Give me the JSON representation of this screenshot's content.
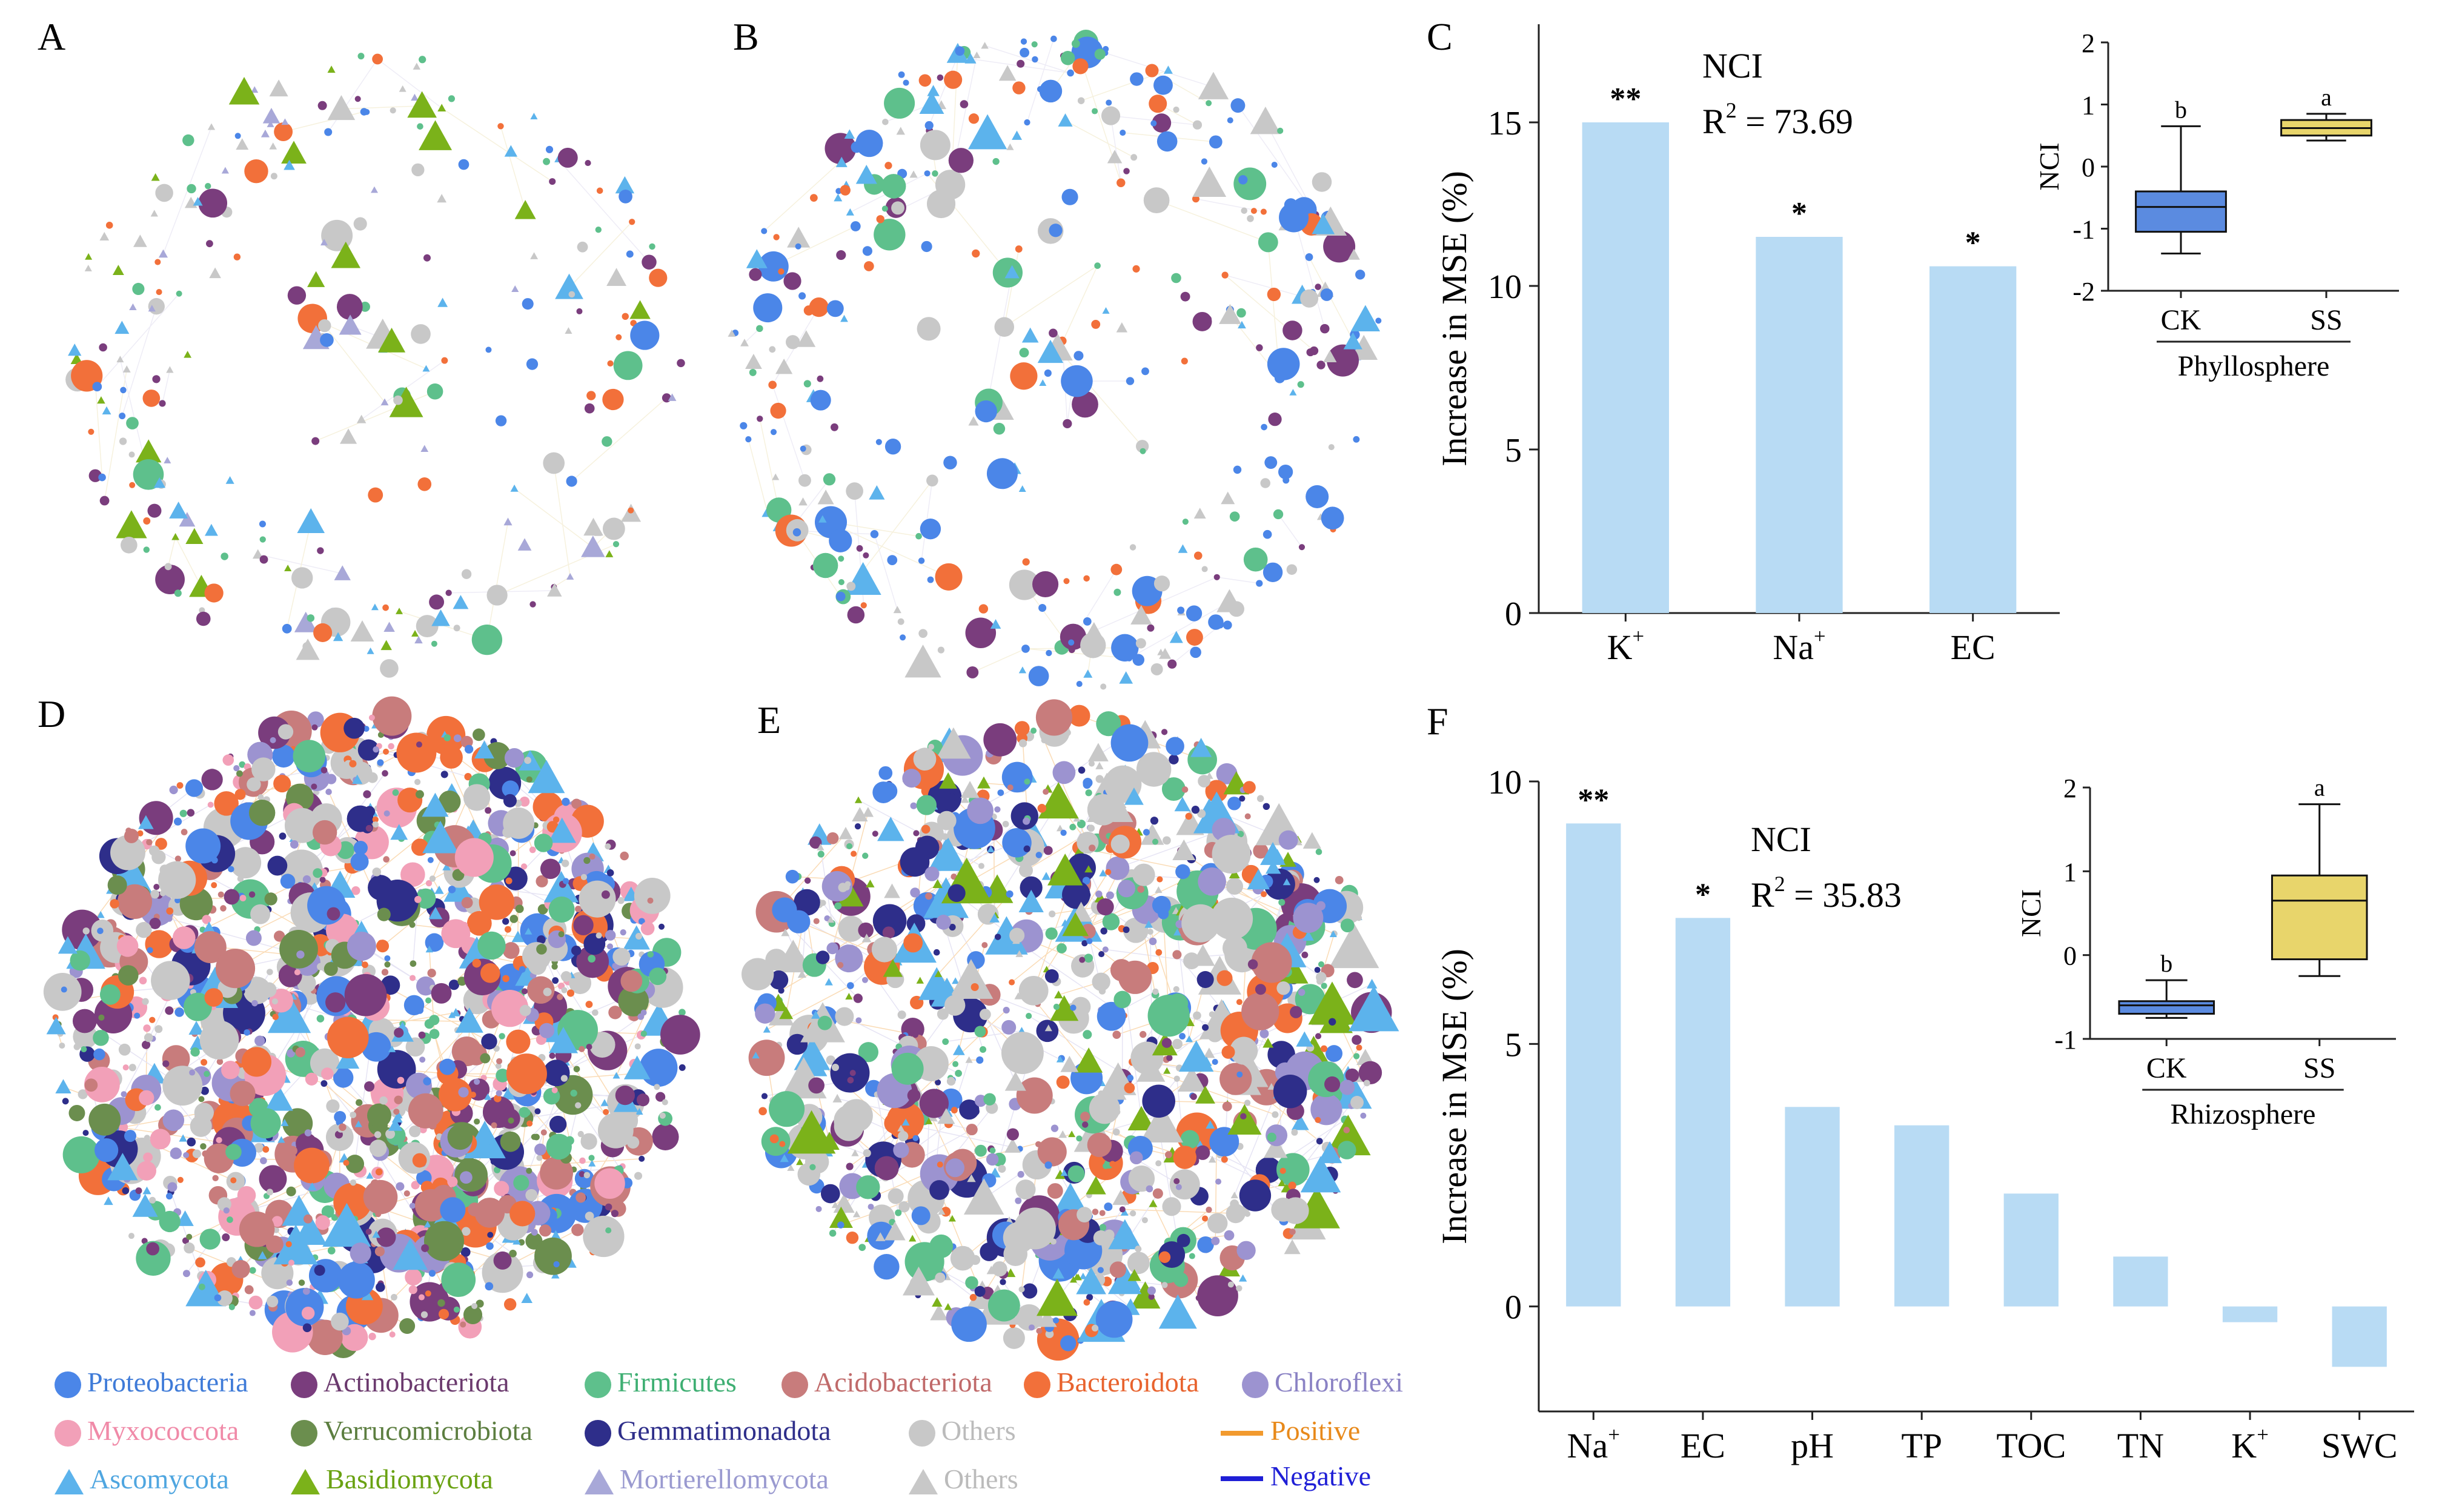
{
  "panels": {
    "A": "A",
    "B": "B",
    "C": "C",
    "D": "D",
    "E": "E",
    "F": "F"
  },
  "colors": {
    "bar": "#B8DBF4",
    "ck_box": "#5B8BE0",
    "ss_box": "#E8D56B",
    "positive": "#F29A2E",
    "negative": "#1F1FD6",
    "Proteobacteria": "#4B86E8",
    "Actinobacteriota": "#7A3D7D",
    "Firmicutes": "#5EC08C",
    "Acidobacteriota": "#C87C7C",
    "Bacteroidota": "#F2703A",
    "Chloroflexi": "#9C93D0",
    "Myxococcota": "#F2A0B8",
    "Verrucomicrobiota": "#6B8E4E",
    "Gemmatimonadota": "#2E2E8A",
    "OthersBact": "#C8C8C8",
    "Ascomycota": "#5CB3EC",
    "Basidiomycota": "#7BB21A",
    "Mortierellomycota": "#A8A8D8",
    "OthersFungi": "#C8C8C8"
  },
  "legend": {
    "items": [
      {
        "label": "Proteobacteria",
        "shape": "circle",
        "color": "#4B86E8",
        "text_color": "#3F7BD8"
      },
      {
        "label": "Actinobacteriota",
        "shape": "circle",
        "color": "#7A3D7D",
        "text_color": "#6B3A6E"
      },
      {
        "label": "Firmicutes",
        "shape": "circle",
        "color": "#5EC08C",
        "text_color": "#3FAF73"
      },
      {
        "label": "Acidobacteriota",
        "shape": "circle",
        "color": "#C87C7C",
        "text_color": "#C06A6A"
      },
      {
        "label": "Bacteroidota",
        "shape": "circle",
        "color": "#F2703A",
        "text_color": "#E8632E"
      },
      {
        "label": "Chloroflexi",
        "shape": "circle",
        "color": "#9C93D0",
        "text_color": "#8A82C4"
      },
      {
        "label": "Myxococcota",
        "shape": "circle",
        "color": "#F2A0B8",
        "text_color": "#F08AA8"
      },
      {
        "label": "Verrucomicrobiota",
        "shape": "circle",
        "color": "#6B8E4E",
        "text_color": "#5C7E40"
      },
      {
        "label": "Gemmatimonadota",
        "shape": "circle",
        "color": "#2E2E8A",
        "text_color": "#2E2E8A"
      },
      {
        "label": "Others",
        "shape": "circle",
        "color": "#C8C8C8",
        "text_color": "#BBBBBB"
      },
      {
        "label": "Ascomycota",
        "shape": "triangle",
        "color": "#5CB3EC",
        "text_color": "#4FA6E0"
      },
      {
        "label": "Basidiomycota",
        "shape": "triangle",
        "color": "#7BB21A",
        "text_color": "#6AA212"
      },
      {
        "label": "Mortierellomycota",
        "shape": "triangle",
        "color": "#A8A8D8",
        "text_color": "#9A9AD0"
      },
      {
        "label": "Others",
        "shape": "triangle",
        "color": "#C8C8C8",
        "text_color": "#BBBBBB"
      }
    ],
    "positive": "Positive",
    "negative": "Negative"
  },
  "chart_data": [
    {
      "panel": "C",
      "type": "bar",
      "title": "NCI",
      "r2_label": "R",
      "r2_value": "= 73.69",
      "categories": [
        "K+",
        "Na+",
        "EC"
      ],
      "category_labels": [
        {
          "base": "K",
          "sup": "+"
        },
        {
          "base": "Na",
          "sup": "+"
        },
        {
          "base": "EC",
          "sup": ""
        }
      ],
      "values": [
        15.0,
        11.5,
        10.6
      ],
      "significance": [
        "**",
        "*",
        "*"
      ],
      "ylabel": "Increase in MSE (%)",
      "ylim": [
        0,
        18
      ],
      "yticks": [
        0,
        5,
        10,
        15
      ],
      "inset": {
        "type": "boxplot",
        "xlabel": "Phyllosphere",
        "ylabel": "NCI",
        "ylim": [
          -2,
          2
        ],
        "yticks": [
          -2,
          -1,
          0,
          1,
          2
        ],
        "groups": [
          {
            "name": "CK",
            "whisker_low": -1.4,
            "q1": -1.05,
            "median": -0.65,
            "q3": -0.4,
            "whisker_high": 0.65,
            "letter": "b"
          },
          {
            "name": "SS",
            "whisker_low": 0.42,
            "q1": 0.5,
            "median": 0.62,
            "q3": 0.75,
            "whisker_high": 0.85,
            "letter": "a"
          }
        ]
      }
    },
    {
      "panel": "F",
      "type": "bar",
      "title": "NCI",
      "r2_label": "R",
      "r2_value": "= 35.83",
      "categories": [
        "Na+",
        "EC",
        "pH",
        "TP",
        "TOC",
        "TN",
        "K+",
        "SWC"
      ],
      "category_labels": [
        {
          "base": "Na",
          "sup": "+"
        },
        {
          "base": "EC",
          "sup": ""
        },
        {
          "base": "pH",
          "sup": ""
        },
        {
          "base": "TP",
          "sup": ""
        },
        {
          "base": "TOC",
          "sup": ""
        },
        {
          "base": "TN",
          "sup": ""
        },
        {
          "base": "K",
          "sup": "+"
        },
        {
          "base": "SWC",
          "sup": ""
        }
      ],
      "values": [
        9.2,
        7.4,
        3.8,
        3.45,
        2.15,
        0.95,
        -0.3,
        -1.15
      ],
      "significance": [
        "**",
        "*",
        "",
        "",
        "",
        "",
        "",
        ""
      ],
      "ylabel": "Increase in MSE (%)",
      "ylim": [
        -2,
        10
      ],
      "yticks": [
        0,
        5,
        10
      ],
      "inset": {
        "type": "boxplot",
        "xlabel": "Rhizosphere",
        "ylabel": "NCI",
        "ylim": [
          -1,
          2
        ],
        "yticks": [
          -1,
          0,
          1,
          2
        ],
        "groups": [
          {
            "name": "CK",
            "whisker_low": -0.75,
            "q1": -0.7,
            "median": -0.6,
            "q3": -0.55,
            "whisker_high": -0.3,
            "letter": "b"
          },
          {
            "name": "SS",
            "whisker_low": -0.25,
            "q1": -0.05,
            "median": 0.65,
            "q3": 0.95,
            "whisker_high": 1.8,
            "letter": "a"
          }
        ]
      }
    }
  ]
}
